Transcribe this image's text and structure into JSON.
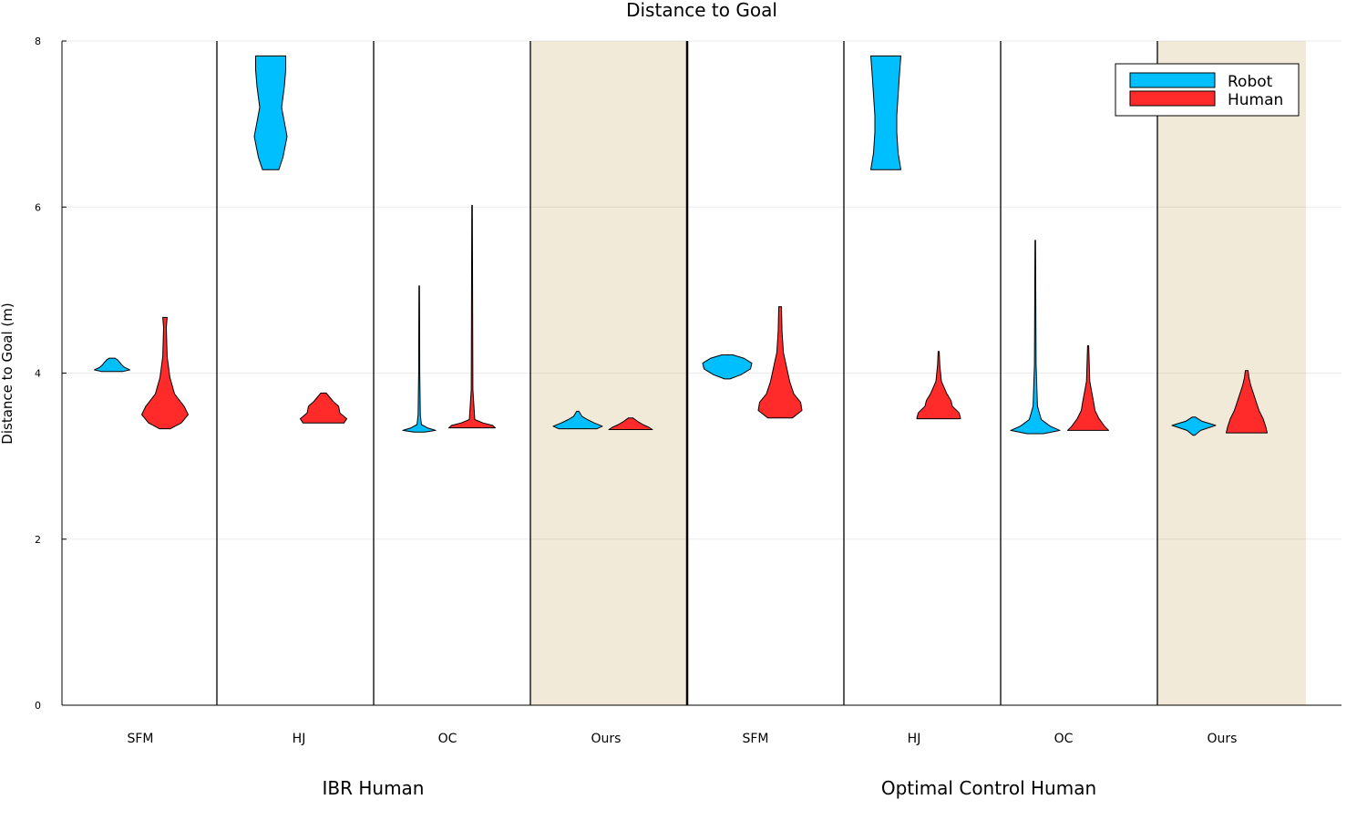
{
  "chart_data": {
    "type": "violin",
    "title": "Distance to Goal",
    "ylabel": "Distance to Goal (m)",
    "ylim": [
      0,
      8
    ],
    "yticks": [
      "0",
      "2",
      "4",
      "6",
      "8"
    ],
    "grid": true,
    "legend_position": "top-right",
    "colors": {
      "Robot": "#00bfff",
      "Human": "#ff2b2b",
      "highlight_band": "#f2ead8"
    },
    "categories": [
      "SFM",
      "HJ",
      "OC",
      "Ours",
      "SFM",
      "HJ",
      "OC",
      "Ours"
    ],
    "groups": [
      {
        "label": "IBR Human",
        "categories": [
          0,
          1,
          2,
          3
        ]
      },
      {
        "label": "Optimal Control Human",
        "categories": [
          4,
          5,
          6,
          7
        ]
      }
    ],
    "highlighted_categories": [
      3,
      7
    ],
    "series": [
      {
        "name": "Robot",
        "violins": [
          {
            "profile": [
              [
                4.02,
                0.4
              ],
              [
                4.04,
                0.65
              ],
              [
                4.07,
                0.45
              ],
              [
                4.1,
                0.35
              ],
              [
                4.13,
                0.28
              ],
              [
                4.16,
                0.2
              ],
              [
                4.18,
                0.1
              ]
            ]
          },
          {
            "profile": [
              [
                6.45,
                0.3
              ],
              [
                6.6,
                0.45
              ],
              [
                6.85,
                0.6
              ],
              [
                7.2,
                0.4
              ],
              [
                7.45,
                0.5
              ],
              [
                7.65,
                0.55
              ],
              [
                7.82,
                0.55
              ]
            ]
          },
          {
            "profile": [
              [
                3.29,
                0.2
              ],
              [
                3.31,
                0.6
              ],
              [
                3.34,
                0.3
              ],
              [
                3.38,
                0.08
              ],
              [
                3.5,
                0.04
              ],
              [
                4.0,
                0.02
              ],
              [
                5.05,
                0.01
              ]
            ]
          },
          {
            "profile": [
              [
                3.33,
                0.7
              ],
              [
                3.36,
                0.9
              ],
              [
                3.4,
                0.6
              ],
              [
                3.44,
                0.35
              ],
              [
                3.48,
                0.15
              ],
              [
                3.54,
                0.04
              ]
            ]
          },
          {
            "profile": [
              [
                3.93,
                0.1
              ],
              [
                3.98,
                0.5
              ],
              [
                4.05,
                0.85
              ],
              [
                4.12,
                0.9
              ],
              [
                4.18,
                0.6
              ],
              [
                4.22,
                0.2
              ]
            ]
          },
          {
            "profile": [
              [
                6.45,
                0.55
              ],
              [
                6.65,
                0.45
              ],
              [
                6.9,
                0.4
              ],
              [
                7.1,
                0.4
              ],
              [
                7.35,
                0.45
              ],
              [
                7.6,
                0.5
              ],
              [
                7.82,
                0.55
              ]
            ]
          },
          {
            "profile": [
              [
                3.27,
                0.3
              ],
              [
                3.31,
                0.9
              ],
              [
                3.36,
                0.55
              ],
              [
                3.44,
                0.22
              ],
              [
                3.6,
                0.08
              ],
              [
                4.1,
                0.03
              ],
              [
                5.6,
                0.01
              ]
            ]
          },
          {
            "profile": [
              [
                3.25,
                0.03
              ],
              [
                3.31,
                0.25
              ],
              [
                3.37,
                0.8
              ],
              [
                3.42,
                0.3
              ],
              [
                3.47,
                0.06
              ]
            ]
          }
        ]
      },
      {
        "name": "Human",
        "violins": [
          {
            "profile": [
              [
                3.33,
                0.2
              ],
              [
                3.4,
                0.6
              ],
              [
                3.5,
                0.85
              ],
              [
                3.6,
                0.7
              ],
              [
                3.75,
                0.35
              ],
              [
                3.95,
                0.18
              ],
              [
                4.2,
                0.08
              ],
              [
                4.55,
                0.05
              ],
              [
                4.67,
                0.08
              ]
            ]
          },
          {
            "profile": [
              [
                3.4,
                0.75
              ],
              [
                3.45,
                0.85
              ],
              [
                3.52,
                0.6
              ],
              [
                3.6,
                0.55
              ],
              [
                3.66,
                0.35
              ],
              [
                3.72,
                0.2
              ],
              [
                3.76,
                0.1
              ]
            ]
          },
          {
            "profile": [
              [
                3.34,
                0.85
              ],
              [
                3.37,
                0.75
              ],
              [
                3.4,
                0.4
              ],
              [
                3.44,
                0.1
              ],
              [
                3.8,
                0.03
              ],
              [
                6.02,
                0.01
              ]
            ]
          },
          {
            "profile": [
              [
                3.32,
                0.8
              ],
              [
                3.35,
                0.65
              ],
              [
                3.38,
                0.45
              ],
              [
                3.42,
                0.25
              ],
              [
                3.46,
                0.08
              ]
            ]
          },
          {
            "profile": [
              [
                3.46,
                0.45
              ],
              [
                3.55,
                0.8
              ],
              [
                3.65,
                0.75
              ],
              [
                3.75,
                0.5
              ],
              [
                3.9,
                0.35
              ],
              [
                4.05,
                0.25
              ],
              [
                4.25,
                0.12
              ],
              [
                4.5,
                0.07
              ],
              [
                4.8,
                0.05
              ]
            ]
          },
          {
            "profile": [
              [
                3.45,
                0.8
              ],
              [
                3.52,
                0.75
              ],
              [
                3.6,
                0.5
              ],
              [
                3.67,
                0.45
              ],
              [
                3.75,
                0.3
              ],
              [
                3.9,
                0.1
              ],
              [
                4.1,
                0.04
              ],
              [
                4.26,
                0.02
              ]
            ]
          },
          {
            "profile": [
              [
                3.31,
                0.75
              ],
              [
                3.36,
                0.6
              ],
              [
                3.45,
                0.4
              ],
              [
                3.55,
                0.25
              ],
              [
                3.65,
                0.2
              ],
              [
                3.9,
                0.06
              ],
              [
                4.33,
                0.02
              ]
            ]
          },
          {
            "profile": [
              [
                3.28,
                0.75
              ],
              [
                3.35,
                0.7
              ],
              [
                3.45,
                0.6
              ],
              [
                3.55,
                0.45
              ],
              [
                3.65,
                0.35
              ],
              [
                3.75,
                0.25
              ],
              [
                3.85,
                0.15
              ],
              [
                3.95,
                0.08
              ],
              [
                4.03,
                0.05
              ]
            ]
          }
        ]
      }
    ]
  }
}
